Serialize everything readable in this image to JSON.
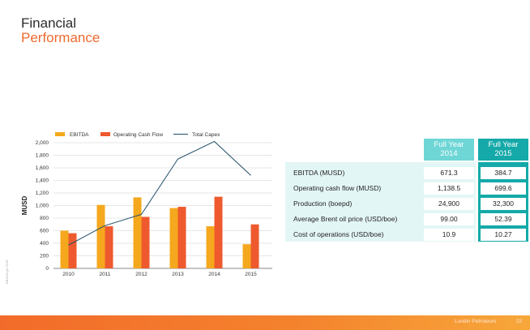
{
  "title": {
    "line1": "Financial",
    "line2": "Performance"
  },
  "side_code": "BB1150 p6 1516",
  "colors": {
    "ebitda": "#f5a81d",
    "ocf": "#ee5a2e",
    "capex": "#1f4e69",
    "accent": "#ee6a2f",
    "teal_light": "#6fd6d6",
    "teal_dark": "#15a9a9"
  },
  "chart_data": {
    "type": "bar",
    "categories": [
      "2010",
      "2011",
      "2012",
      "2013",
      "2014",
      "2015"
    ],
    "series": [
      {
        "name": "EBITDA",
        "type": "bar",
        "values": [
          600,
          1010,
          1130,
          960,
          670,
          385
        ]
      },
      {
        "name": "Operating Cash Flow",
        "type": "bar",
        "values": [
          560,
          670,
          820,
          980,
          1140,
          700
        ]
      },
      {
        "name": "Total Capex",
        "type": "line",
        "values": [
          370,
          680,
          860,
          1740,
          2020,
          1480
        ]
      }
    ],
    "ylabel": "MUSD",
    "ylim": [
      0,
      2000
    ],
    "yticks": [
      "0",
      "200",
      "400",
      "600",
      "800",
      "1,000",
      "1,200",
      "1,400",
      "1,600",
      "1,800",
      "2,000"
    ],
    "grid": true,
    "legend": "top"
  },
  "table": {
    "headers": [
      {
        "line1": "Full Year",
        "line2": "2014"
      },
      {
        "line1": "Full Year",
        "line2": "2015"
      }
    ],
    "rows": [
      {
        "label": "EBITDA (MUSD)",
        "v2014": "671.3",
        "v2015": "384.7"
      },
      {
        "label": "Operating cash flow (MUSD)",
        "v2014": "1,138.5",
        "v2015": "699.6"
      },
      {
        "label": "Production (boepd)",
        "v2014": "24,900",
        "v2015": "32,300"
      },
      {
        "label": "Average Brent oil price (USD/boe)",
        "v2014": "99.00",
        "v2015": "52.39"
      },
      {
        "label": "Cost of operations (USD/boe)",
        "v2014": "10.9",
        "v2015": "10.27"
      }
    ]
  },
  "footer": {
    "brand": "Lundin Petroleum",
    "page": "22"
  }
}
